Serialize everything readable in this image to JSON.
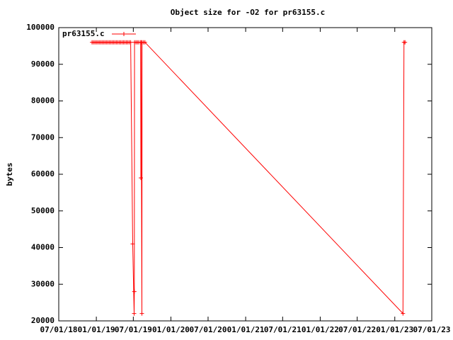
{
  "chart_data": {
    "type": "line",
    "title": "Object size for -O2 for pr63155.c",
    "y_label": "bytes",
    "x": [
      "12/11/18",
      "12/18/18",
      "12/25/18",
      "01/01/19",
      "01/08/19",
      "01/15/19",
      "01/22/19",
      "01/29/19",
      "02/05/19",
      "02/12/19",
      "02/19/19",
      "02/26/19",
      "03/05/19",
      "03/12/19",
      "03/19/19",
      "03/26/19",
      "04/02/19",
      "04/09/19",
      "04/16/19",
      "04/23/19",
      "04/30/19",
      "05/07/19",
      "05/14/19",
      "05/21/19",
      "05/28/19",
      "06/04/19",
      "06/11/19",
      "06/18/19",
      "06/28/19",
      "07/05/19",
      "07/06/19",
      "07/07/19",
      "07/14/19",
      "07/21/19",
      "07/28/19",
      "08/06/19",
      "08/07/19",
      "08/08/19",
      "08/12/19",
      "08/13/19",
      "08/20/19",
      "08/27/19",
      "02/10/23",
      "02/15/23",
      "02/20/23"
    ],
    "series": [
      {
        "name": "pr63155.c",
        "color": "#ff0000",
        "values": [
          96000,
          96000,
          96000,
          96000,
          96000,
          96000,
          96000,
          96000,
          96000,
          96000,
          96000,
          96000,
          96000,
          96000,
          96000,
          96000,
          96000,
          96000,
          96000,
          96000,
          96000,
          96000,
          96000,
          96000,
          96000,
          96000,
          96000,
          96000,
          41000,
          22000,
          28000,
          96000,
          96000,
          96000,
          96000,
          96000,
          59000,
          96000,
          22000,
          96000,
          96000,
          96000,
          22000,
          96000,
          96000
        ]
      }
    ],
    "xlim": [
      "07/01/18",
      "07/01/23"
    ],
    "xticks": [
      "07/01/18",
      "01/01/19",
      "07/01/19",
      "01/01/20",
      "07/01/20",
      "01/01/21",
      "07/01/21",
      "01/01/22",
      "07/01/22",
      "01/01/23",
      "07/01/23"
    ],
    "ylim": [
      20000,
      100000
    ],
    "yticks": [
      20000,
      30000,
      40000,
      50000,
      60000,
      70000,
      80000,
      90000,
      100000
    ],
    "legend": "top-left",
    "grid": false
  }
}
